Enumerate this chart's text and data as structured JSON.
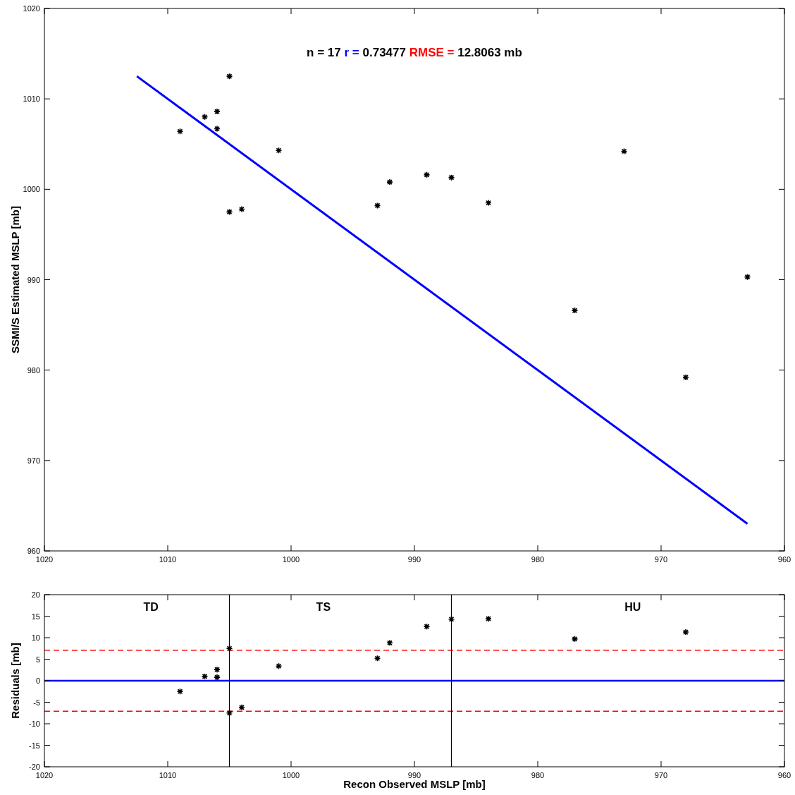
{
  "chart_data": [
    {
      "type": "scatter",
      "ylabel": "SSMI/S Estimated MSLP [mb]",
      "xlim": [
        1020,
        960
      ],
      "xticks": [
        1020,
        1010,
        1000,
        990,
        980,
        970,
        960
      ],
      "ylim": [
        960,
        1020
      ],
      "yticks": [
        960,
        970,
        980,
        990,
        1000,
        1010,
        1020
      ],
      "grid": false,
      "annotations": [
        "n = 17",
        "r =",
        "0.73477",
        "RMSE =",
        "12.8063 mb"
      ],
      "series": [
        {
          "marker": "cross",
          "color": "#000000",
          "x": [
            1009,
            1007,
            1006,
            1006,
            1005,
            1005,
            1004,
            1001,
            993,
            992,
            989,
            987,
            984,
            977,
            973,
            968,
            963
          ],
          "values": [
            1006.4,
            1008,
            1008.6,
            1006.7,
            1012.5,
            997.5,
            997.8,
            1004.3,
            998.2,
            1000.8,
            1001.6,
            1001.3,
            998.5,
            986.6,
            1004.2,
            979.2,
            990.3
          ]
        },
        {
          "type": "line",
          "color": "#0000ff",
          "x": [
            1012.5,
            963
          ],
          "values": [
            1012.5,
            963
          ]
        }
      ]
    },
    {
      "type": "scatter",
      "xlabel": "Recon Observed MSLP [mb]",
      "ylabel": "Residuals [mb]",
      "xlim": [
        1020,
        960
      ],
      "xticks": [
        1020,
        1010,
        1000,
        990,
        980,
        970,
        960
      ],
      "ylim": [
        -20,
        20
      ],
      "yticks": [
        -20,
        -15,
        -10,
        -5,
        0,
        5,
        10,
        15,
        20
      ],
      "grid": false,
      "annotations": [
        "TD",
        "TS",
        "HU"
      ],
      "ref_lines": [
        {
          "axis": "y",
          "value": 0,
          "color": "#0000ff",
          "line_style": "solid"
        },
        {
          "axis": "y",
          "value": 7.1,
          "color": "#ff0000",
          "line_style": "dashed"
        },
        {
          "axis": "y",
          "value": -7.1,
          "color": "#ff0000",
          "line_style": "dashed"
        },
        {
          "axis": "x",
          "value": 1005,
          "color": "#000000",
          "line_style": "solid"
        },
        {
          "axis": "x",
          "value": 987,
          "color": "#000000",
          "line_style": "solid"
        }
      ],
      "series": [
        {
          "marker": "cross",
          "color": "#000000",
          "x": [
            1009,
            1007,
            1006,
            1006,
            1005,
            1005,
            1004,
            1001,
            993,
            992,
            989,
            987,
            984,
            977,
            968
          ],
          "values": [
            -2.5,
            1,
            2.6,
            0.8,
            7.5,
            -7.5,
            -6.2,
            3.4,
            5.2,
            8.8,
            12.6,
            14.3,
            14.4,
            9.7,
            11.3
          ]
        }
      ]
    }
  ]
}
